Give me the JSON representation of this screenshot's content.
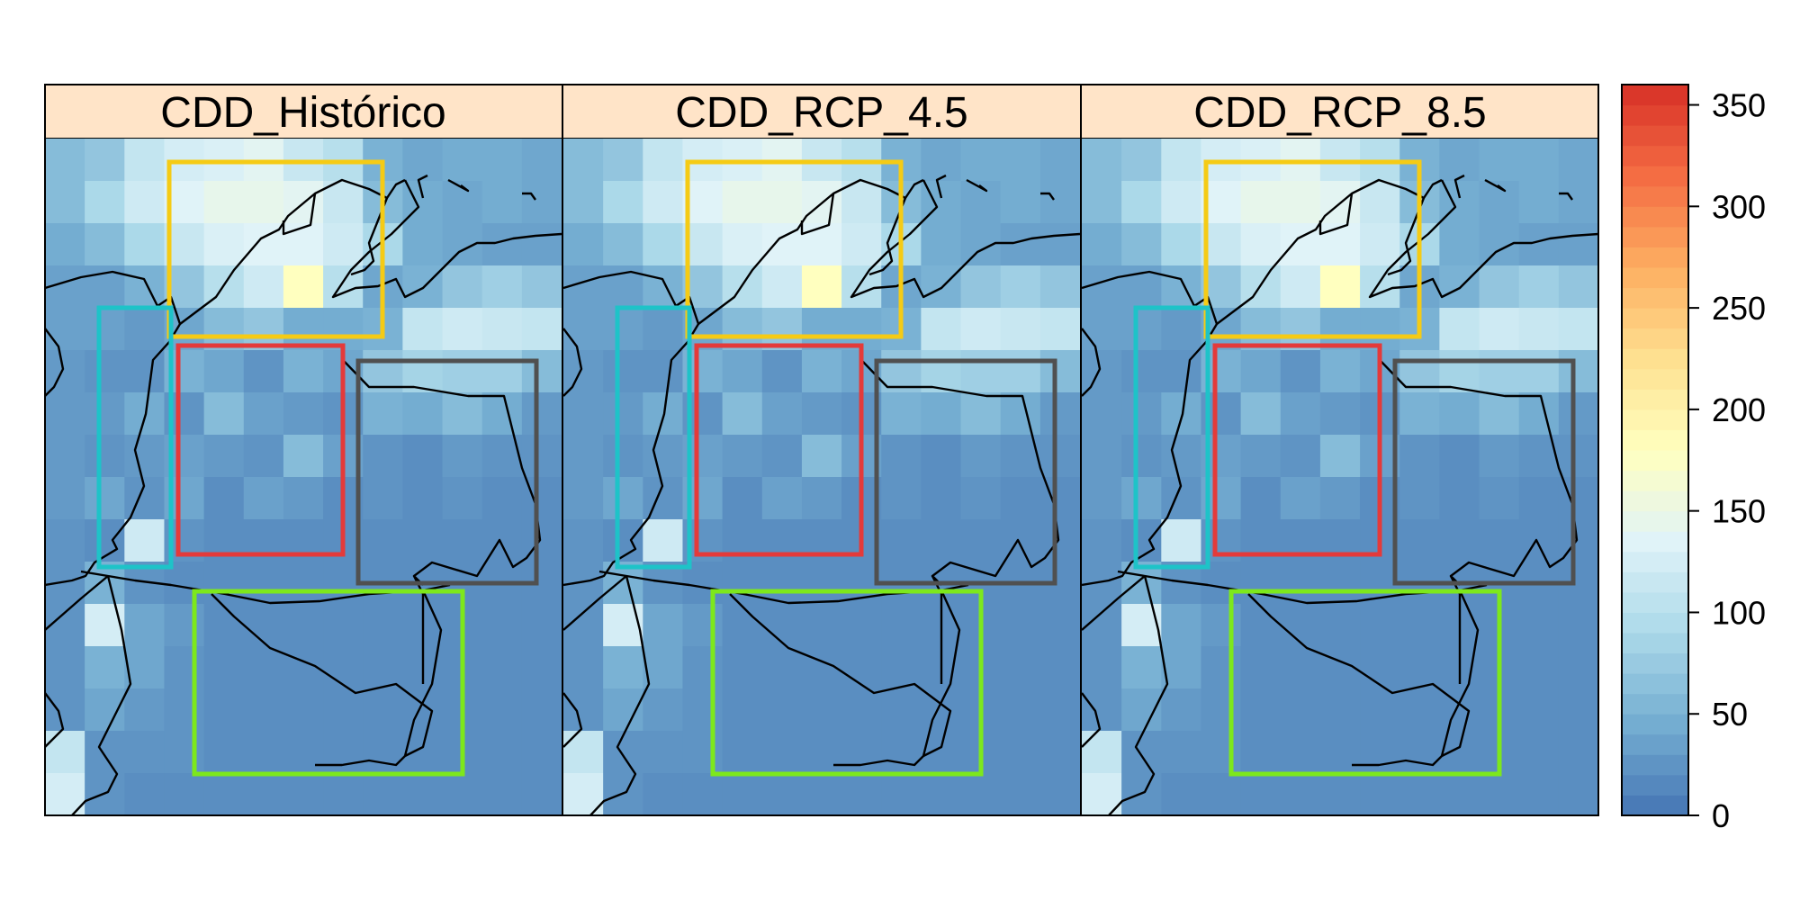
{
  "panels": [
    {
      "id": "historico",
      "title": "CDD_Histórico"
    },
    {
      "id": "rcp45",
      "title": "CDD_RCP_4.5"
    },
    {
      "id": "rcp85",
      "title": "CDD_RCP_8.5"
    }
  ],
  "colorbar": {
    "min": 0,
    "max": 360,
    "ticks": [
      "0",
      "50",
      "100",
      "150",
      "200",
      "250",
      "300",
      "350"
    ],
    "tick_values": [
      0,
      50,
      100,
      150,
      200,
      250,
      300,
      350
    ],
    "palette": [
      "#4575b4",
      "#74add1",
      "#abd9e9",
      "#e0f3f8",
      "#ffffbf",
      "#fee090",
      "#fdae61",
      "#f46d43",
      "#d73027"
    ]
  },
  "colors": {
    "strip_background": "#ffe4c8",
    "region_yellow": "#f5cb15",
    "region_cyan": "#1ec3c8",
    "region_red": "#e43a3a",
    "region_gray": "#505050",
    "region_green": "#7de81c",
    "coastline": "#000000"
  },
  "grid_values": [
    [
      60,
      70,
      110,
      125,
      130,
      140,
      115,
      100,
      50,
      40,
      45,
      45,
      40
    ],
    [
      60,
      90,
      120,
      135,
      145,
      145,
      140,
      115,
      60,
      45,
      40,
      45,
      40
    ],
    [
      45,
      60,
      90,
      115,
      130,
      135,
      135,
      120,
      90,
      45,
      40,
      35,
      35
    ],
    [
      35,
      35,
      50,
      70,
      100,
      120,
      180,
      100,
      40,
      50,
      70,
      80,
      70
    ],
    [
      35,
      35,
      30,
      40,
      60,
      70,
      45,
      45,
      50,
      110,
      120,
      115,
      110
    ],
    [
      30,
      25,
      25,
      50,
      40,
      25,
      50,
      40,
      70,
      85,
      80,
      80,
      60
    ],
    [
      30,
      30,
      45,
      25,
      60,
      35,
      30,
      25,
      50,
      45,
      60,
      45,
      30
    ],
    [
      30,
      25,
      30,
      35,
      30,
      25,
      60,
      35,
      25,
      20,
      30,
      25,
      25
    ],
    [
      30,
      40,
      25,
      40,
      20,
      35,
      30,
      20,
      25,
      20,
      25,
      20,
      20
    ],
    [
      25,
      20,
      120,
      25,
      20,
      20,
      20,
      20,
      20,
      20,
      20,
      20,
      20
    ],
    [
      25,
      50,
      25,
      20,
      20,
      20,
      20,
      20,
      20,
      20,
      20,
      20,
      20
    ],
    [
      25,
      125,
      40,
      30,
      20,
      20,
      20,
      20,
      20,
      20,
      20,
      20,
      20
    ],
    [
      25,
      50,
      40,
      25,
      20,
      20,
      20,
      20,
      20,
      20,
      20,
      20,
      20
    ],
    [
      25,
      40,
      30,
      25,
      20,
      20,
      20,
      20,
      20,
      20,
      20,
      20,
      20
    ],
    [
      110,
      25,
      25,
      25,
      20,
      20,
      20,
      20,
      20,
      20,
      20,
      20,
      20
    ],
    [
      125,
      25,
      20,
      20,
      20,
      20,
      20,
      20,
      20,
      20,
      20,
      20,
      20
    ]
  ]
}
